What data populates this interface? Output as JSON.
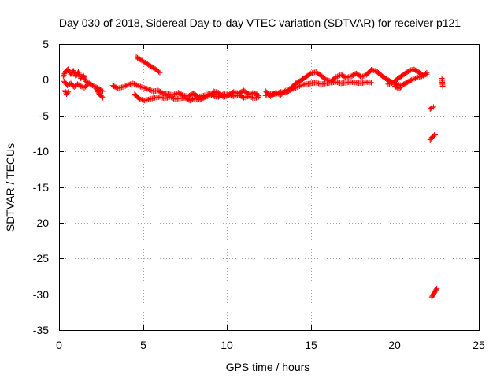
{
  "chart_data": {
    "type": "scatter",
    "title": "Day 030 of 2018, Sidereal Day-to-day VTEC variation (SDTVAR) for receiver p121",
    "xlabel": "GPS time / hours",
    "ylabel": "SDTVAR / TECUs",
    "xlim": [
      0,
      25
    ],
    "ylim": [
      -35,
      5
    ],
    "x_ticks": [
      0,
      5,
      10,
      15,
      20,
      25
    ],
    "y_ticks": [
      5,
      0,
      -5,
      -10,
      -15,
      -20,
      -25,
      -30,
      -35
    ],
    "grid": true,
    "series": [
      {
        "name": "SDTVAR",
        "marker": "+",
        "color": "#ff0000",
        "tracks": [
          {
            "x": [
              0.25,
              0.4,
              0.55,
              0.7,
              0.85,
              1.0,
              1.15,
              1.3,
              1.45,
              1.6,
              1.8,
              2.0,
              2.2,
              2.4,
              2.6
            ],
            "y": [
              0.5,
              1.2,
              1.5,
              0.8,
              1.3,
              0.5,
              1.1,
              0.2,
              0.6,
              -0.2,
              -0.5,
              -0.8,
              -1.0,
              -1.3,
              -1.6
            ]
          },
          {
            "x": [
              0.3,
              0.5,
              0.7,
              0.9,
              1.1,
              1.3,
              1.5,
              1.7
            ],
            "y": [
              -0.2,
              -0.8,
              -0.5,
              -1.0,
              -0.6,
              -0.9,
              -1.1,
              -0.7
            ]
          },
          {
            "x": [
              0.35,
              0.45,
              0.55
            ],
            "y": [
              -1.5,
              -2.0,
              -1.7
            ]
          },
          {
            "x": [
              2.2,
              2.4,
              2.6
            ],
            "y": [
              -1.2,
              -2.0,
              -2.5
            ]
          },
          {
            "x": [
              3.2,
              3.5,
              3.8,
              4.1,
              4.4,
              4.7,
              5.0,
              5.3,
              5.6,
              5.9,
              6.2,
              6.5,
              6.8,
              7.1,
              7.4,
              7.7,
              8.0,
              8.3,
              8.6,
              8.9,
              9.2
            ],
            "y": [
              -0.8,
              -1.2,
              -1.0,
              -0.7,
              -0.5,
              -0.8,
              -1.1,
              -1.3,
              -1.6,
              -1.5,
              -1.9,
              -2.0,
              -2.1,
              -1.8,
              -2.2,
              -2.3,
              -1.9,
              -2.4,
              -2.2,
              -2.0,
              -1.8
            ]
          },
          {
            "x": [
              4.5,
              4.8,
              5.1,
              5.4,
              5.7,
              6.0,
              6.3,
              6.6,
              6.9,
              7.2,
              7.5,
              7.8,
              8.1,
              8.4,
              8.7,
              9.0,
              9.3
            ],
            "y": [
              -2.0,
              -2.7,
              -2.9,
              -2.7,
              -2.5,
              -2.4,
              -2.6,
              -2.4,
              -2.7,
              -2.6,
              -2.5,
              -2.9,
              -2.6,
              -2.8,
              -2.4,
              -2.2,
              -2.0
            ]
          },
          {
            "x": [
              4.6,
              4.8,
              5.0,
              5.2,
              5.4,
              5.6,
              5.8,
              6.0
            ],
            "y": [
              3.2,
              2.9,
              2.6,
              2.3,
              2.0,
              1.7,
              1.4,
              1.0
            ]
          },
          {
            "x": [
              9.2,
              9.5,
              9.8,
              10.1,
              10.4,
              10.7,
              11.0,
              11.3,
              11.6,
              11.9
            ],
            "y": [
              -2.3,
              -2.4,
              -2.0,
              -2.1,
              -1.7,
              -1.9,
              -1.5,
              -2.0,
              -1.8,
              -2.2
            ]
          },
          {
            "x": [
              9.2,
              9.5,
              9.8,
              10.1,
              10.4,
              10.7,
              11.0,
              11.3,
              11.6,
              11.9
            ],
            "y": [
              -1.6,
              -1.8,
              -2.4,
              -2.2,
              -2.3,
              -2.1,
              -2.5,
              -2.3,
              -2.6,
              -2.4
            ]
          },
          {
            "x": [
              12.3,
              12.6,
              12.9,
              13.2,
              13.5,
              13.8,
              14.1,
              14.4,
              14.7,
              15.0,
              15.3,
              15.6,
              15.9,
              16.2,
              16.5,
              16.8,
              17.1,
              17.4,
              17.7,
              18.0,
              18.3,
              18.6
            ],
            "y": [
              -2.2,
              -1.9,
              -2.0,
              -1.7,
              -1.8,
              -1.4,
              -1.1,
              -0.8,
              -0.6,
              -0.5,
              -0.4,
              -0.6,
              -0.5,
              -0.4,
              -0.3,
              -0.5,
              -0.4,
              -0.3,
              -0.4,
              -0.5,
              -0.3,
              -0.4
            ]
          },
          {
            "x": [
              12.3,
              12.6,
              12.9,
              13.2,
              13.5,
              13.8,
              14.1,
              14.4,
              14.7,
              15.0,
              15.3,
              15.6,
              15.9,
              16.2,
              16.5,
              16.8,
              17.1,
              17.4,
              17.7,
              18.0,
              18.3,
              18.6
            ],
            "y": [
              -1.6,
              -2.3,
              -1.8,
              -2.1,
              -1.5,
              -1.2,
              -0.5,
              -0.1,
              0.4,
              0.9,
              1.1,
              0.6,
              0.0,
              -0.2,
              0.4,
              0.7,
              0.3,
              0.5,
              0.9,
              0.4,
              0.7,
              1.4
            ]
          },
          {
            "x": [
              18.6,
              18.9,
              19.2,
              19.5,
              19.8,
              20.1,
              20.4,
              20.7,
              21.0,
              21.3,
              21.6,
              21.9
            ],
            "y": [
              1.4,
              1.2,
              0.6,
              0.1,
              -0.3,
              -0.6,
              -0.8,
              -0.4,
              0.0,
              0.3,
              0.5,
              0.8
            ]
          },
          {
            "x": [
              19.6,
              19.9,
              20.2,
              20.5,
              20.8,
              21.1,
              21.4,
              21.7,
              21.9
            ],
            "y": [
              -0.6,
              -0.4,
              0.2,
              0.7,
              1.2,
              1.5,
              1.1,
              0.6,
              1.0
            ]
          },
          {
            "x": [
              20.0,
              20.2,
              20.4
            ],
            "y": [
              -0.9,
              -1.2,
              -1.0
            ]
          },
          {
            "x": [
              22.1,
              22.2,
              22.3
            ],
            "y": [
              -4.1,
              -3.9,
              -3.8
            ]
          },
          {
            "x": [
              22.1,
              22.2,
              22.3,
              22.4
            ],
            "y": [
              -8.4,
              -8.1,
              -7.9,
              -7.6
            ]
          },
          {
            "x": [
              22.2,
              22.3,
              22.4,
              22.5
            ],
            "y": [
              -30.4,
              -30.0,
              -29.6,
              -29.2
            ]
          },
          {
            "x": [
              22.8,
              22.85
            ],
            "y": [
              0.2,
              -0.9
            ]
          }
        ]
      }
    ]
  }
}
